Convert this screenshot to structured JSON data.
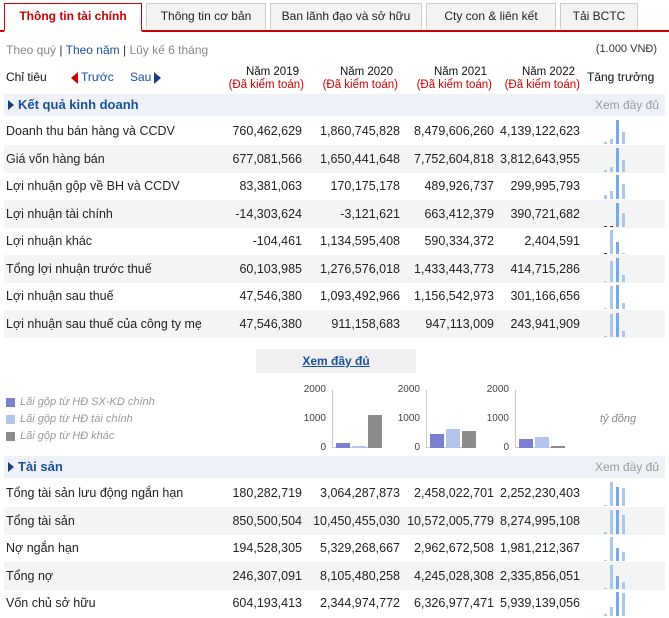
{
  "tabs": [
    "Thông tin tài chính",
    "Thông tin cơ bản",
    "Ban lãnh đạo và sở hữu",
    "Cty con & liên kết",
    "Tải BCTC"
  ],
  "periods": {
    "quarter": "Theo quý",
    "sep1": " | ",
    "year": "Theo năm",
    "sep2": " | ",
    "ytd": "Lũy kế 6 tháng"
  },
  "unit": "(1.000 VNĐ)",
  "header": {
    "label": "Chỉ tiêu",
    "prev": "Trước",
    "next": "Sau",
    "growth": "Tăng trưởng",
    "years": [
      {
        "y": "Năm 2019",
        "a": "(Đã kiểm toán)"
      },
      {
        "y": "Năm 2020",
        "a": "(Đã kiểm toán)"
      },
      {
        "y": "Năm 2021",
        "a": "(Đã kiểm toán)"
      },
      {
        "y": "Năm 2022",
        "a": "(Đã kiểm toán)"
      }
    ]
  },
  "section1": {
    "title": "Kết quả kinh doanh",
    "more": "Xem đầy đủ"
  },
  "section2": {
    "title": "Tài sản",
    "more": "Xem đầy đủ"
  },
  "rows1": [
    {
      "name": "Doanh thu bán hàng và CCDV",
      "v": [
        "760,462,629",
        "1,860,745,828",
        "8,479,606,260",
        "4,139,122,623"
      ]
    },
    {
      "name": "Giá vốn hàng bán",
      "v": [
        "677,081,566",
        "1,650,441,648",
        "7,752,604,818",
        "3,812,643,955"
      ]
    },
    {
      "name": "Lợi nhuận gộp về BH và CCDV",
      "v": [
        "83,381,063",
        "170,175,178",
        "489,926,737",
        "299,995,793"
      ]
    },
    {
      "name": "Lợi nhuận tài chính",
      "v": [
        "-14,303,624",
        "-3,121,621",
        "663,412,379",
        "390,721,682"
      ]
    },
    {
      "name": "Lợi nhuận khác",
      "v": [
        "-104,461",
        "1,134,595,408",
        "590,334,372",
        "2,404,591"
      ]
    },
    {
      "name": "Tổng lợi nhuận trước thuế",
      "v": [
        "60,103,985",
        "1,276,576,018",
        "1,433,443,773",
        "414,715,286"
      ]
    },
    {
      "name": "Lợi nhuận sau thuế",
      "v": [
        "47,546,380",
        "1,093,492,966",
        "1,156,542,973",
        "301,166,656"
      ]
    },
    {
      "name": "Lợi nhuận sau thuế của công ty mẹ",
      "v": [
        "47,546,380",
        "911,158,683",
        "947,113,009",
        "243,941,909"
      ]
    }
  ],
  "rows2": [
    {
      "name": "Tổng tài sản lưu động ngắn hạn",
      "v": [
        "180,282,719",
        "3,064,287,873",
        "2,458,022,701",
        "2,252,230,403"
      ]
    },
    {
      "name": "Tổng tài sản",
      "v": [
        "850,500,504",
        "10,450,455,030",
        "10,572,005,779",
        "8,274,995,108"
      ]
    },
    {
      "name": "Nợ ngắn hạn",
      "v": [
        "194,528,305",
        "5,329,268,667",
        "2,962,672,508",
        "1,981,212,367"
      ]
    },
    {
      "name": "Tổng nợ",
      "v": [
        "246,307,091",
        "8,105,480,258",
        "4,245,028,308",
        "2,335,856,051"
      ]
    },
    {
      "name": "Vốn chủ sở hữu",
      "v": [
        "604,193,413",
        "2,344,974,772",
        "6,326,977,471",
        "5,939,139,056"
      ]
    }
  ],
  "xem_day_du": "Xem đầy đủ",
  "legend": [
    {
      "label": "Lãi gộp từ HĐ SX-KD chính",
      "color": "#7b7fcf"
    },
    {
      "label": "Lãi gộp từ HĐ tài chính",
      "color": "#b4c4ec"
    },
    {
      "label": "Lãi gộp từ HĐ khác",
      "color": "#8c8c8c"
    }
  ],
  "ticks": [
    "2000",
    "1000",
    "0"
  ],
  "ty_dong": "tỷ đồng",
  "chart_data": [
    {
      "type": "bar",
      "categories": [
        "Lãi gộp từ HĐ SX-KD chính",
        "Lãi gộp từ HĐ tài chính",
        "Lãi gộp từ HĐ khác"
      ],
      "values": [
        170,
        -3,
        1135
      ],
      "ylim": [
        0,
        2000
      ]
    },
    {
      "type": "bar",
      "categories": [
        "Lãi gộp từ HĐ SX-KD chính",
        "Lãi gộp từ HĐ tài chính",
        "Lãi gộp từ HĐ khác"
      ],
      "values": [
        490,
        663,
        590
      ],
      "ylim": [
        0,
        2000
      ]
    },
    {
      "type": "bar",
      "categories": [
        "Lãi gộp từ HĐ SX-KD chính",
        "Lãi gộp từ HĐ tài chính",
        "Lãi gộp từ HĐ khác"
      ],
      "values": [
        300,
        391,
        2
      ],
      "ylim": [
        0,
        2000
      ]
    }
  ]
}
